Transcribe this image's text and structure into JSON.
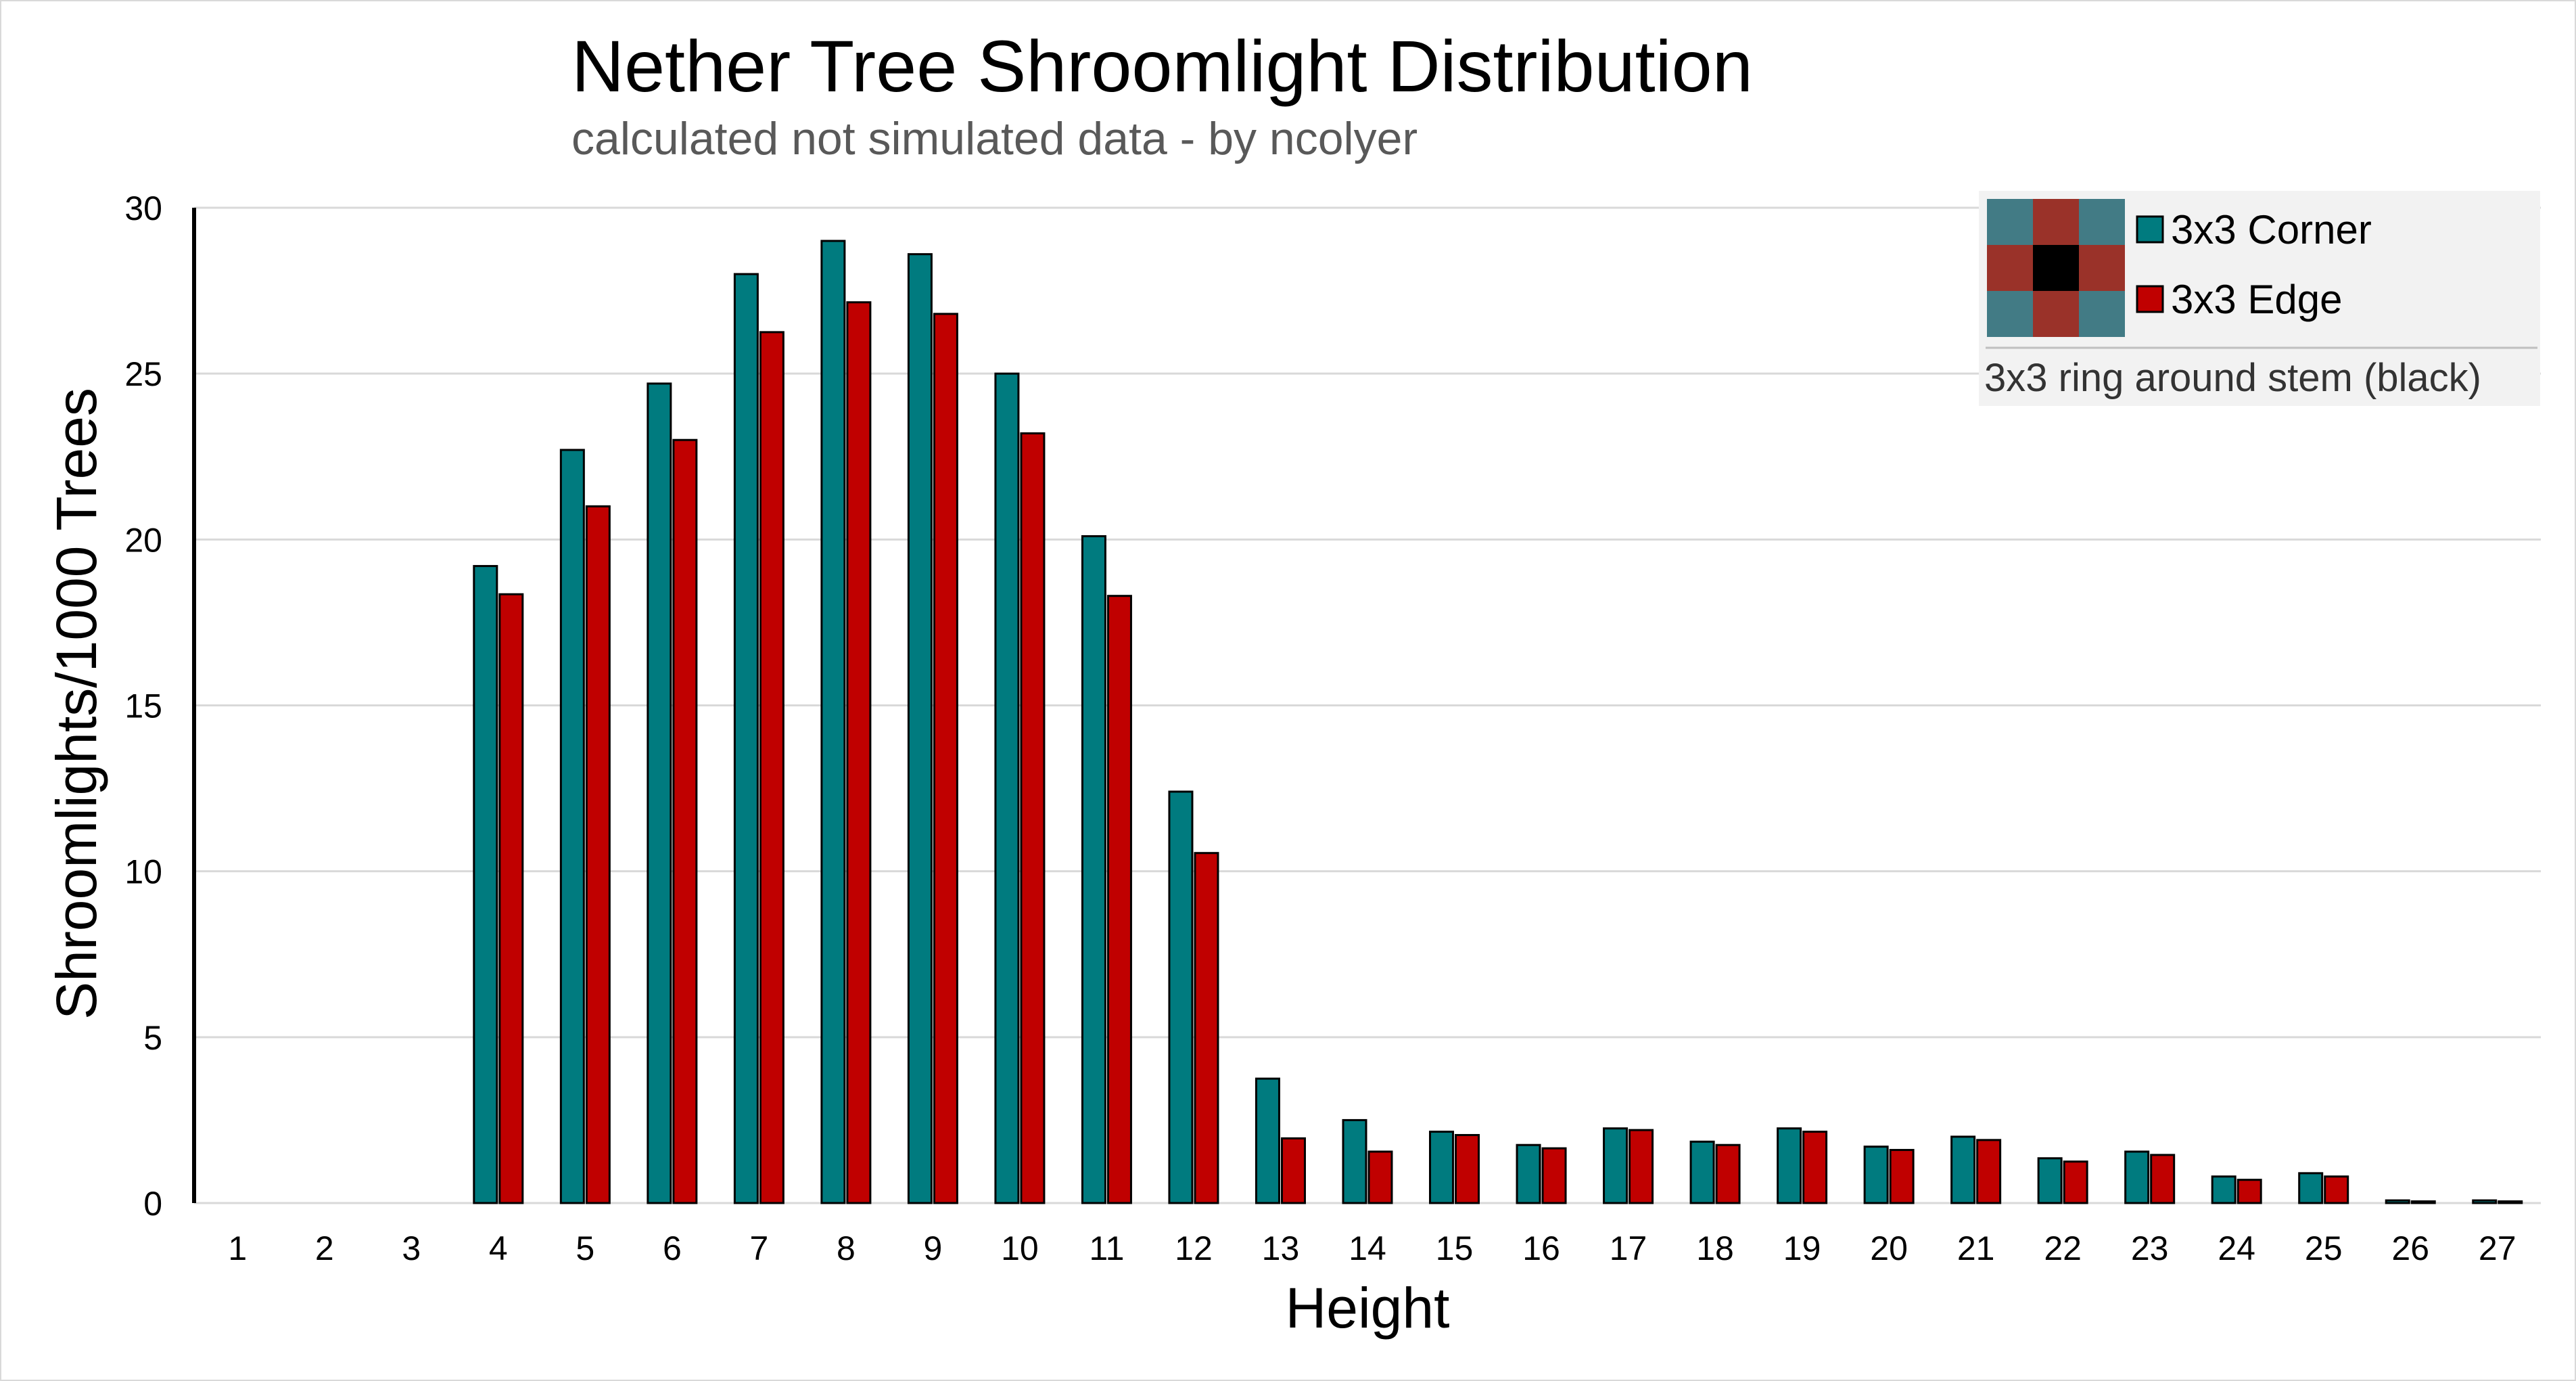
{
  "chart_data": {
    "type": "bar",
    "title": "Nether Tree Shroomlight Distribution",
    "subtitle": "calculated not simulated data - by ncolyer",
    "xlabel": "Height",
    "ylabel": "Shroomlights/1000 Trees",
    "ylim": [
      0,
      30
    ],
    "yticks": [
      0,
      5,
      10,
      15,
      20,
      25,
      30
    ],
    "grid": true,
    "legend_position": "top-right",
    "categories": [
      "1",
      "2",
      "3",
      "4",
      "5",
      "6",
      "7",
      "8",
      "9",
      "10",
      "11",
      "12",
      "13",
      "14",
      "15",
      "16",
      "17",
      "18",
      "19",
      "20",
      "21",
      "22",
      "23",
      "24",
      "25",
      "26",
      "27"
    ],
    "series": [
      {
        "name": "3x3 Corner",
        "color": "#007b7f",
        "values": [
          0,
          0,
          0,
          19.2,
          22.7,
          24.7,
          28.0,
          29.0,
          28.6,
          25.0,
          20.1,
          12.4,
          3.75,
          2.5,
          2.15,
          1.75,
          2.25,
          1.85,
          2.25,
          1.7,
          2.0,
          1.35,
          1.55,
          0.8,
          0.9,
          0.08,
          0.08
        ]
      },
      {
        "name": "3x3 Edge",
        "color": "#c00000",
        "values": [
          0,
          0,
          0,
          18.35,
          21.0,
          23.0,
          26.25,
          27.15,
          26.8,
          23.2,
          18.3,
          10.55,
          1.95,
          1.55,
          2.05,
          1.65,
          2.2,
          1.75,
          2.15,
          1.6,
          1.9,
          1.25,
          1.45,
          0.7,
          0.8,
          0.05,
          0.05
        ]
      }
    ],
    "legend": {
      "note": "3x3 ring around stem (black)",
      "grid_colors": {
        "corner": "#427b85",
        "edge": "#9a3229",
        "center": "#000000"
      }
    }
  }
}
